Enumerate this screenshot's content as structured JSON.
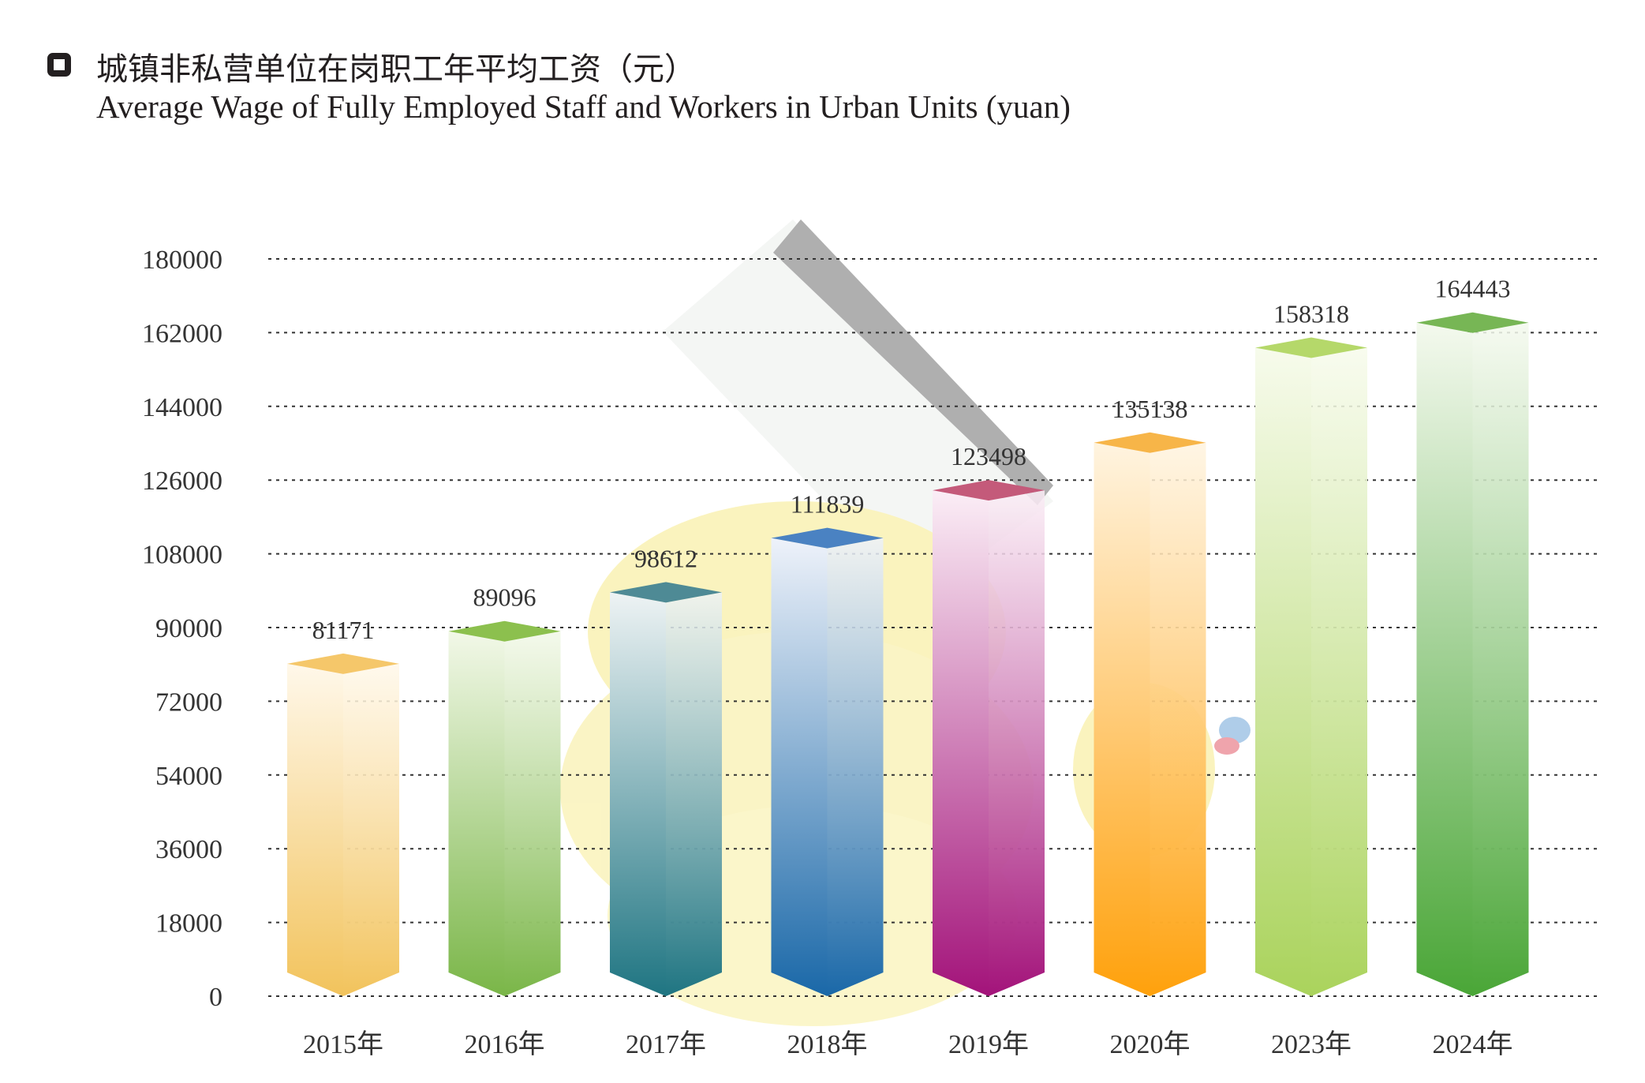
{
  "title": {
    "cn": "城镇非私营单位在岗职工年平均工资（元）",
    "en": "Average Wage of Fully Employed Staff and Workers in Urban Units (yuan)"
  },
  "chart_data": {
    "type": "bar",
    "categories": [
      "2015年",
      "2016年",
      "2017年",
      "2018年",
      "2019年",
      "2020年",
      "2023年",
      "2024年"
    ],
    "values": [
      81171,
      89096,
      98612,
      111839,
      123498,
      135138,
      158318,
      164443
    ],
    "ylim": [
      0,
      180000
    ],
    "yticks": [
      0,
      18000,
      36000,
      54000,
      72000,
      90000,
      108000,
      126000,
      144000,
      162000,
      180000
    ],
    "grid": true,
    "legend": "none",
    "style": "3d-prism",
    "bar_colors": [
      {
        "top": "#f5c76a",
        "light": "#fff8ea",
        "dark": "#f2c35c"
      },
      {
        "top": "#8cc04e",
        "light": "#f2f8e8",
        "dark": "#7ab648"
      },
      {
        "top": "#4e8a95",
        "light": "#eef3f4",
        "dark": "#1f7582"
      },
      {
        "top": "#4a82c2",
        "light": "#eef2fa",
        "dark": "#1a68a8"
      },
      {
        "top": "#c45a7a",
        "light": "#fbeef6",
        "dark": "#a3137a"
      },
      {
        "top": "#f7b548",
        "light": "#fff4e0",
        "dark": "#ffa10c"
      },
      {
        "top": "#b5d86a",
        "light": "#f7fbec",
        "dark": "#aad35c"
      },
      {
        "top": "#77b655",
        "light": "#f4f9ee",
        "dark": "#4aa637"
      }
    ]
  }
}
